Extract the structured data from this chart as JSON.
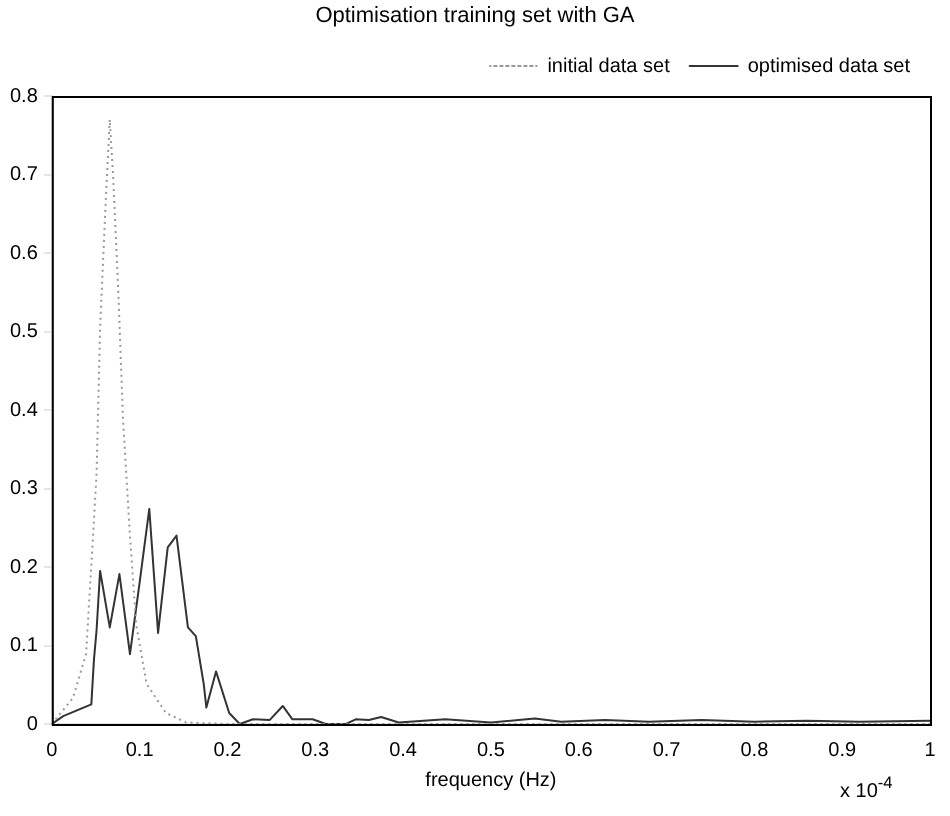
{
  "chart_data": {
    "type": "line",
    "title": "Optimisation training set with GA",
    "xlabel": "frequency (Hz)",
    "annotations": [
      "x 10$^{-4}$"
    ],
    "xlim": [
      0,
      1
    ],
    "xticks": [
      0,
      0.1,
      0.2,
      0.3,
      0.4,
      0.5,
      0.6,
      0.7,
      0.8,
      0.9,
      1
    ],
    "ylim": [
      0,
      0.8
    ],
    "yticks": [
      0,
      0.1,
      0.2,
      0.3,
      0.4,
      0.5,
      0.6,
      0.7,
      0.8
    ],
    "grid": false,
    "legend": "top right",
    "marker": "none",
    "series": [
      {
        "name": "initial data set",
        "color": "#999999",
        "line_style": "dotted",
        "x": [
          0,
          0.024,
          0.039,
          0.047,
          0.051,
          0.055,
          0.061,
          0.066,
          0.07,
          0.076,
          0.081,
          0.089,
          0.096,
          0.108,
          0.13,
          0.153,
          0.2,
          1
        ],
        "values": [
          0,
          0.033,
          0.089,
          0.24,
          0.32,
          0.505,
          0.656,
          0.77,
          0.694,
          0.543,
          0.39,
          0.24,
          0.127,
          0.051,
          0.014,
          0.002,
          0,
          0
        ]
      },
      {
        "name": "optimised data set",
        "color": "#333333",
        "line_style": "solid",
        "x": [
          0,
          0.013,
          0.045,
          0.048,
          0.051,
          0.055,
          0.066,
          0.077,
          0.089,
          0.1,
          0.111,
          0.121,
          0.132,
          0.142,
          0.155,
          0.164,
          0.173,
          0.176,
          0.187,
          0.202,
          0.214,
          0.229,
          0.248,
          0.263,
          0.274,
          0.297,
          0.312,
          0.335,
          0.346,
          0.361,
          0.375,
          0.395,
          0.448,
          0.5,
          0.55,
          0.58,
          0.63,
          0.68,
          0.74,
          0.8,
          0.86,
          0.92,
          1
        ],
        "values": [
          0,
          0.01,
          0.025,
          0.082,
          0.12,
          0.195,
          0.123,
          0.191,
          0.089,
          0.18,
          0.274,
          0.116,
          0.225,
          0.24,
          0.123,
          0.112,
          0.051,
          0.021,
          0.067,
          0.014,
          0,
          0.006,
          0.005,
          0.023,
          0.006,
          0.006,
          0,
          0,
          0.006,
          0.005,
          0.009,
          0.002,
          0.006,
          0.002,
          0.007,
          0.003,
          0.005,
          0.003,
          0.005,
          0.003,
          0.004,
          0.003,
          0.004
        ]
      }
    ]
  }
}
